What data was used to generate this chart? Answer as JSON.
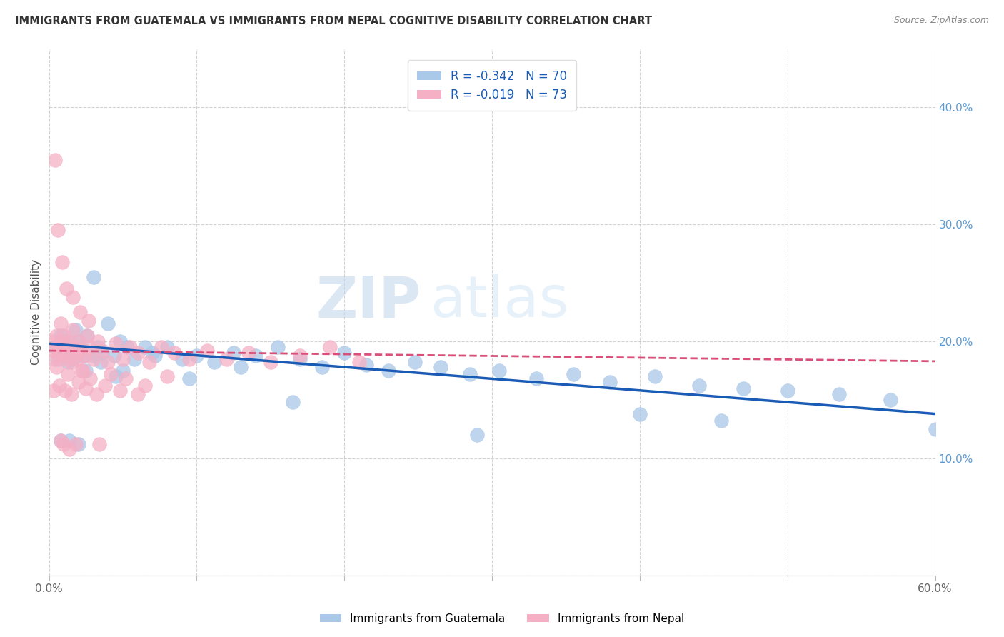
{
  "title": "IMMIGRANTS FROM GUATEMALA VS IMMIGRANTS FROM NEPAL COGNITIVE DISABILITY CORRELATION CHART",
  "source": "Source: ZipAtlas.com",
  "ylabel": "Cognitive Disability",
  "xlim": [
    0.0,
    0.6
  ],
  "ylim": [
    0.0,
    0.45
  ],
  "xticks": [
    0.0,
    0.1,
    0.2,
    0.3,
    0.4,
    0.5,
    0.6
  ],
  "xticklabels": [
    "0.0%",
    "",
    "",
    "",
    "",
    "",
    "60.0%"
  ],
  "yticks": [
    0.0,
    0.1,
    0.2,
    0.3,
    0.4
  ],
  "yticklabels_right": [
    "",
    "10.0%",
    "20.0%",
    "30.0%",
    "40.0%"
  ],
  "guatemala_color": "#aac8e8",
  "nepal_color": "#f5b0c5",
  "guatemala_trend_color": "#1a5bb5",
  "nepal_trend_color": "#d94f7a",
  "R_guatemala": -0.342,
  "N_guatemala": 70,
  "R_nepal": -0.019,
  "N_nepal": 73,
  "legend_labels": [
    "Immigrants from Guatemala",
    "Immigrants from Nepal"
  ],
  "watermark_zip": "ZIP",
  "watermark_atlas": "atlas",
  "background_color": "#ffffff",
  "grid_color": "#c8c8c8",
  "title_color": "#333333",
  "right_axis_color": "#5b9bd5",
  "guatemala_x": [
    0.004,
    0.006,
    0.008,
    0.009,
    0.01,
    0.011,
    0.012,
    0.013,
    0.014,
    0.015,
    0.016,
    0.017,
    0.018,
    0.019,
    0.02,
    0.022,
    0.024,
    0.026,
    0.028,
    0.03,
    0.033,
    0.036,
    0.04,
    0.044,
    0.048,
    0.053,
    0.058,
    0.065,
    0.072,
    0.08,
    0.09,
    0.1,
    0.112,
    0.125,
    0.14,
    0.155,
    0.17,
    0.185,
    0.2,
    0.215,
    0.23,
    0.248,
    0.265,
    0.285,
    0.305,
    0.33,
    0.355,
    0.38,
    0.41,
    0.44,
    0.47,
    0.5,
    0.535,
    0.57,
    0.6,
    0.025,
    0.035,
    0.05,
    0.07,
    0.095,
    0.13,
    0.165,
    0.29,
    0.4,
    0.455,
    0.008,
    0.014,
    0.02,
    0.03,
    0.045
  ],
  "guatemala_y": [
    0.195,
    0.185,
    0.205,
    0.19,
    0.2,
    0.188,
    0.195,
    0.182,
    0.192,
    0.198,
    0.185,
    0.195,
    0.21,
    0.188,
    0.2,
    0.195,
    0.188,
    0.205,
    0.19,
    0.188,
    0.195,
    0.19,
    0.215,
    0.188,
    0.2,
    0.195,
    0.185,
    0.195,
    0.188,
    0.195,
    0.185,
    0.188,
    0.182,
    0.19,
    0.188,
    0.195,
    0.185,
    0.178,
    0.19,
    0.18,
    0.175,
    0.182,
    0.178,
    0.172,
    0.175,
    0.168,
    0.172,
    0.165,
    0.17,
    0.162,
    0.16,
    0.158,
    0.155,
    0.15,
    0.125,
    0.175,
    0.182,
    0.175,
    0.19,
    0.168,
    0.178,
    0.148,
    0.12,
    0.138,
    0.132,
    0.115,
    0.115,
    0.112,
    0.255,
    0.17
  ],
  "nepal_x": [
    0.002,
    0.003,
    0.004,
    0.005,
    0.006,
    0.007,
    0.008,
    0.009,
    0.01,
    0.011,
    0.012,
    0.013,
    0.014,
    0.015,
    0.016,
    0.017,
    0.018,
    0.019,
    0.02,
    0.022,
    0.024,
    0.026,
    0.028,
    0.03,
    0.033,
    0.036,
    0.04,
    0.045,
    0.05,
    0.055,
    0.06,
    0.068,
    0.076,
    0.085,
    0.095,
    0.107,
    0.12,
    0.135,
    0.15,
    0.17,
    0.19,
    0.21,
    0.008,
    0.01,
    0.014,
    0.018,
    0.023,
    0.028,
    0.034,
    0.042,
    0.052,
    0.065,
    0.08,
    0.004,
    0.006,
    0.009,
    0.012,
    0.016,
    0.021,
    0.027,
    0.003,
    0.007,
    0.011,
    0.015,
    0.02,
    0.025,
    0.032,
    0.038,
    0.048,
    0.06,
    0.005,
    0.013,
    0.022
  ],
  "nepal_y": [
    0.2,
    0.192,
    0.185,
    0.205,
    0.195,
    0.188,
    0.215,
    0.198,
    0.205,
    0.19,
    0.185,
    0.2,
    0.195,
    0.182,
    0.21,
    0.192,
    0.195,
    0.185,
    0.2,
    0.192,
    0.188,
    0.205,
    0.195,
    0.185,
    0.2,
    0.192,
    0.182,
    0.198,
    0.185,
    0.195,
    0.19,
    0.182,
    0.195,
    0.19,
    0.185,
    0.192,
    0.185,
    0.19,
    0.182,
    0.188,
    0.195,
    0.182,
    0.115,
    0.112,
    0.108,
    0.112,
    0.175,
    0.168,
    0.112,
    0.172,
    0.168,
    0.162,
    0.17,
    0.355,
    0.295,
    0.268,
    0.245,
    0.238,
    0.225,
    0.218,
    0.158,
    0.162,
    0.158,
    0.155,
    0.165,
    0.16,
    0.155,
    0.162,
    0.158,
    0.155,
    0.178,
    0.172,
    0.175
  ]
}
